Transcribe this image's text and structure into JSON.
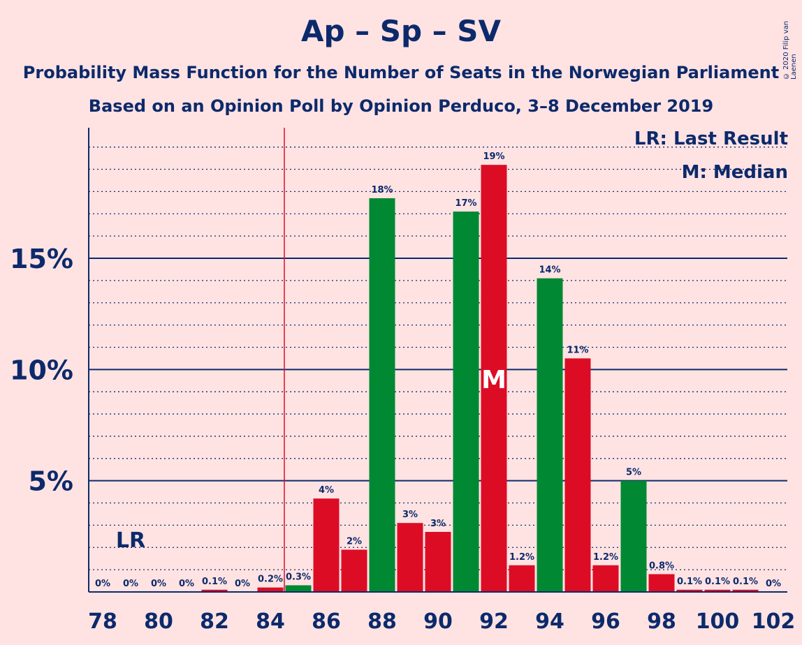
{
  "title": "Ap – Sp – SV",
  "subtitle1": "Probability Mass Function for the Number of Seats in the Norwegian Parliament",
  "subtitle2": "Based on an Opinion Poll by Opinion Perduco, 3–8 December 2019",
  "copyright": "© 2020 Filip van Laenen",
  "legend": {
    "lr": "LR: Last Result",
    "m": "M: Median"
  },
  "colors": {
    "green": "#008833",
    "red": "#dd0c25",
    "axis": "#0c2a6b",
    "lastResultLine": "#dd0c25"
  },
  "chart_data": {
    "type": "bar",
    "xlabel": "",
    "ylabel": "",
    "categories": [
      78,
      79,
      80,
      81,
      82,
      83,
      84,
      85,
      86,
      87,
      88,
      89,
      90,
      91,
      92,
      93,
      94,
      95,
      96,
      97,
      98,
      99,
      100,
      101,
      102
    ],
    "values": [
      0,
      0,
      0,
      0,
      0.1,
      0,
      0.2,
      0.3,
      4.2,
      1.9,
      17.7,
      3.1,
      2.7,
      17.1,
      19.2,
      1.2,
      14.1,
      10.5,
      1.2,
      5.0,
      0.8,
      0.1,
      0.1,
      0.1,
      0
    ],
    "bar_colors": [
      "red",
      "red",
      "red",
      "red",
      "red",
      "red",
      "red",
      "green",
      "red",
      "red",
      "green",
      "red",
      "red",
      "green",
      "red",
      "red",
      "green",
      "red",
      "red",
      "green",
      "red",
      "red",
      "red",
      "red",
      "red"
    ],
    "labels": [
      "0%",
      "0%",
      "0%",
      "0%",
      "0.1%",
      "0%",
      "0.2%",
      "0.3%",
      "4%",
      "2%",
      "18%",
      "3%",
      "3%",
      "17%",
      "19%",
      "1.2%",
      "14%",
      "11%",
      "1.2%",
      "5%",
      "0.8%",
      "0.1%",
      "0.1%",
      "0.1%",
      "0%"
    ],
    "x_ticks": [
      78,
      80,
      82,
      84,
      86,
      88,
      90,
      92,
      94,
      96,
      98,
      100,
      102
    ],
    "y_ticks": [
      5,
      10,
      15
    ],
    "y_tick_labels": [
      "5%",
      "10%",
      "15%"
    ],
    "ylim": [
      0,
      21
    ],
    "last_result": {
      "seat": 79,
      "label": "LR"
    },
    "median": {
      "seat": 92,
      "label": "M"
    },
    "grid": true
  }
}
